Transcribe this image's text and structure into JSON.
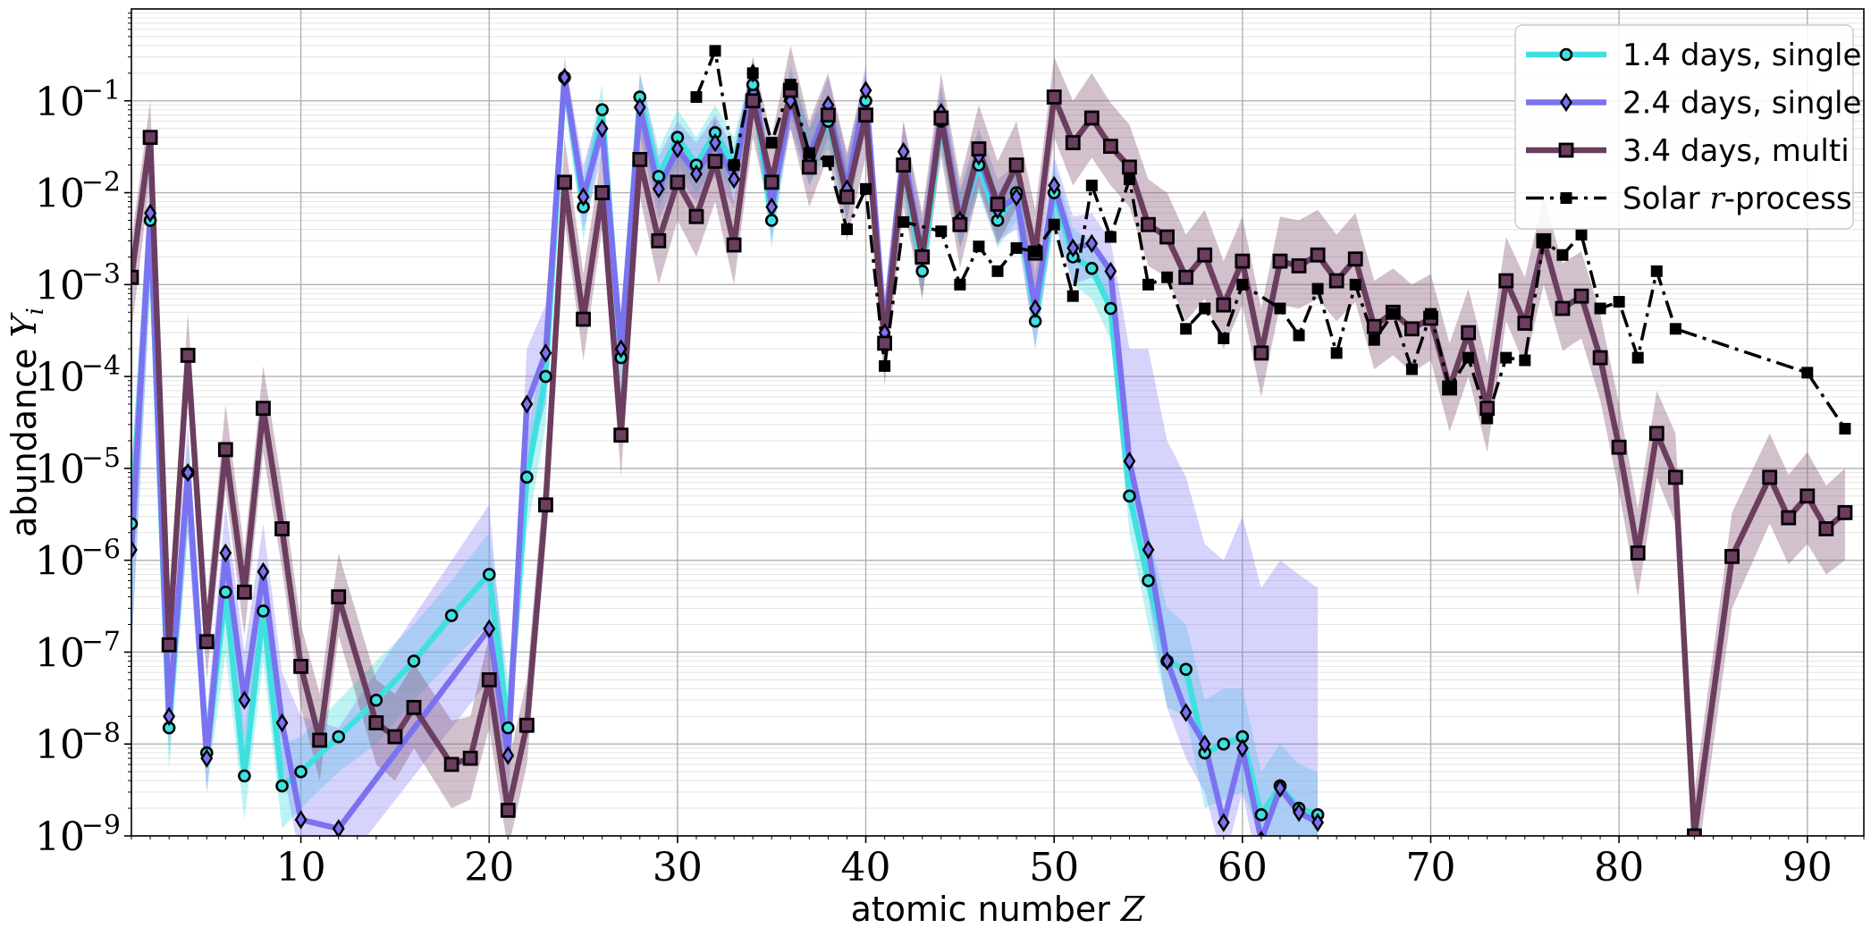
{
  "chart_data": {
    "type": "line",
    "xlabel_text": "atomic number ",
    "xlabel_var": "Z",
    "ylabel_text": "abundance ",
    "ylabel_var": "Y",
    "ylabel_sub": "i",
    "xlim": [
      1,
      93
    ],
    "ylim": [
      1e-09,
      1
    ],
    "yscale": "log",
    "grid": true,
    "legend_position": "top-right",
    "x_ticks": [
      10,
      20,
      30,
      40,
      50,
      60,
      70,
      80,
      90
    ],
    "y_ticks": [
      {
        "base": "10",
        "exp": "−9",
        "value": 1e-09
      },
      {
        "base": "10",
        "exp": "−8",
        "value": 1e-08
      },
      {
        "base": "10",
        "exp": "−7",
        "value": 1e-07
      },
      {
        "base": "10",
        "exp": "−6",
        "value": 1e-06
      },
      {
        "base": "10",
        "exp": "−5",
        "value": 1e-05
      },
      {
        "base": "10",
        "exp": "−4",
        "value": 0.0001
      },
      {
        "base": "10",
        "exp": "−3",
        "value": 0.001
      },
      {
        "base": "10",
        "exp": "−2",
        "value": 0.01
      },
      {
        "base": "10",
        "exp": "−1",
        "value": 0.1
      }
    ],
    "series": [
      {
        "name": "1.4 days, single",
        "color": "#40e0e0",
        "band_color": "#40e0e0",
        "marker": "circle",
        "line_style": "solid",
        "x": [
          1,
          2,
          3,
          4,
          5,
          6,
          7,
          8,
          9,
          10,
          12,
          14,
          16,
          18,
          20,
          21,
          22,
          23,
          24,
          25,
          26,
          27,
          28,
          29,
          30,
          31,
          32,
          33,
          34,
          35,
          36,
          37,
          38,
          39,
          40,
          41,
          42,
          43,
          44,
          45,
          46,
          47,
          48,
          49,
          50,
          51,
          52,
          53,
          54,
          55,
          56,
          57,
          58,
          59,
          60,
          61,
          62,
          63,
          64
        ],
        "y": [
          2.5e-06,
          0.005,
          1.5e-08,
          9e-06,
          8e-09,
          4.5e-07,
          4.5e-09,
          2.8e-07,
          3.5e-09,
          5e-09,
          1.2e-08,
          3e-08,
          8e-08,
          2.5e-07,
          7e-07,
          1.5e-08,
          8e-06,
          0.0001,
          0.18,
          0.007,
          0.08,
          0.00016,
          0.11,
          0.015,
          0.04,
          0.02,
          0.045,
          0.02,
          0.15,
          0.005,
          0.13,
          0.025,
          0.06,
          0.01,
          0.1,
          0.00025,
          0.02,
          0.0014,
          0.06,
          0.005,
          0.02,
          0.005,
          0.01,
          0.0004,
          0.01,
          0.002,
          0.0015,
          0.00055,
          5e-06,
          6e-07,
          8e-08,
          6.5e-08,
          8e-09,
          1e-08,
          1.2e-08,
          1.7e-09,
          3.5e-09,
          2e-09,
          1.7e-09
        ],
        "band_lower": [
          1e-07,
          0.001,
          5e-09,
          2e-06,
          3e-09,
          1e-07,
          1.5e-09,
          8e-08,
          1.2e-09,
          2e-09,
          5e-09,
          1e-08,
          3e-08,
          8e-08,
          2e-07,
          6e-09,
          2e-06,
          3e-05,
          0.1,
          0.003,
          0.04,
          6e-05,
          0.05,
          0.007,
          0.02,
          0.01,
          0.02,
          0.01,
          0.08,
          0.0025,
          0.07,
          0.012,
          0.03,
          0.005,
          0.05,
          0.00012,
          0.01,
          0.0007,
          0.03,
          0.0025,
          0.01,
          0.0025,
          0.005,
          0.0002,
          0.005,
          0.001,
          0.0007,
          0.00025,
          2e-06,
          2e-07,
          2.5e-08,
          2e-08,
          2e-09,
          2.5e-09,
          3e-09,
          1e-09,
          1e-09,
          1e-09,
          1e-09
        ],
        "band_upper": [
          1e-05,
          0.01,
          5e-08,
          2e-05,
          2e-08,
          1.5e-06,
          1.5e-08,
          8e-07,
          1e-08,
          1.2e-08,
          3e-08,
          8e-08,
          2e-07,
          6e-07,
          2e-06,
          5e-08,
          2e-05,
          0.0003,
          0.25,
          0.015,
          0.15,
          0.0004,
          0.2,
          0.03,
          0.08,
          0.04,
          0.09,
          0.04,
          0.25,
          0.01,
          0.25,
          0.05,
          0.12,
          0.02,
          0.2,
          0.0005,
          0.04,
          0.003,
          0.12,
          0.01,
          0.04,
          0.01,
          0.02,
          0.0008,
          0.02,
          0.004,
          0.003,
          0.0012,
          1.5e-05,
          2e-06,
          3e-07,
          2e-07,
          3e-08,
          4e-08,
          4e-08,
          5e-09,
          1e-08,
          6e-09,
          5e-09
        ]
      },
      {
        "name": "2.4 days, single",
        "color": "#7b72f0",
        "band_color": "#8a80f5",
        "marker": "diamond",
        "line_style": "solid",
        "x": [
          1,
          2,
          3,
          4,
          5,
          6,
          7,
          8,
          9,
          10,
          12,
          20,
          21,
          22,
          23,
          24,
          25,
          26,
          27,
          28,
          29,
          30,
          31,
          32,
          33,
          34,
          35,
          36,
          37,
          38,
          39,
          40,
          41,
          42,
          43,
          44,
          45,
          46,
          47,
          48,
          49,
          50,
          51,
          52,
          53,
          54,
          55,
          56,
          57,
          58,
          59,
          60,
          61,
          62,
          63,
          64
        ],
        "y": [
          1.3e-06,
          0.006,
          2e-08,
          9e-06,
          7e-09,
          1.2e-06,
          3e-08,
          7.5e-07,
          1.7e-08,
          1.5e-09,
          1.2e-09,
          1.8e-07,
          7.5e-09,
          5e-05,
          0.00018,
          0.18,
          0.009,
          0.05,
          0.0002,
          0.085,
          0.011,
          0.03,
          0.016,
          0.035,
          0.014,
          0.2,
          0.007,
          0.1,
          0.025,
          0.09,
          0.011,
          0.13,
          0.0003,
          0.028,
          0.002,
          0.075,
          0.005,
          0.025,
          0.0065,
          0.009,
          0.00055,
          0.012,
          0.0025,
          0.0028,
          0.0014,
          1.2e-05,
          1.3e-06,
          8e-08,
          2.2e-08,
          1e-08,
          1.4e-09,
          9e-09,
          9e-10,
          3.3e-09,
          1.8e-09,
          1.4e-09
        ],
        "band_lower": [
          1e-07,
          0.001,
          8e-09,
          2e-06,
          3e-09,
          3e-07,
          1e-08,
          2e-07,
          6e-09,
          5e-10,
          4e-10,
          5e-08,
          2e-09,
          1e-05,
          5e-05,
          0.1,
          0.004,
          0.025,
          8e-05,
          0.04,
          0.005,
          0.015,
          0.008,
          0.015,
          0.007,
          0.1,
          0.003,
          0.05,
          0.012,
          0.04,
          0.005,
          0.06,
          0.00012,
          0.012,
          0.0008,
          0.035,
          0.0025,
          0.012,
          0.003,
          0.004,
          0.0002,
          0.005,
          0.001,
          0.0012,
          0.0006,
          4e-06,
          4e-07,
          2.5e-08,
          7e-09,
          3e-09,
          5e-10,
          3e-09,
          3e-10,
          1e-09,
          6e-10,
          5e-10
        ],
        "band_upper": [
          1e-05,
          0.02,
          6e-08,
          3e-05,
          2e-08,
          4e-06,
          1e-07,
          2.5e-06,
          6e-08,
          2e-08,
          1.5e-08,
          4e-06,
          2.5e-08,
          0.0002,
          0.0006,
          0.3,
          0.02,
          0.1,
          0.0005,
          0.2,
          0.025,
          0.06,
          0.035,
          0.07,
          0.03,
          0.3,
          0.015,
          0.2,
          0.05,
          0.18,
          0.025,
          0.25,
          0.0007,
          0.06,
          0.005,
          0.15,
          0.011,
          0.05,
          0.014,
          0.02,
          0.0013,
          0.025,
          0.0055,
          0.006,
          0.003,
          0.0002,
          0.0002,
          2e-05,
          8e-06,
          1.5e-06,
          1e-06,
          3e-06,
          5e-07,
          1e-06,
          7e-07,
          5e-07
        ]
      },
      {
        "name": "3.4 days, multi",
        "color": "#6b3d5f",
        "band_color": "#8a5a78",
        "marker": "square",
        "line_style": "solid",
        "x": [
          1,
          2,
          3,
          4,
          5,
          6,
          7,
          8,
          9,
          10,
          11,
          12,
          14,
          15,
          16,
          18,
          19,
          20,
          21,
          22,
          23,
          24,
          25,
          26,
          27,
          28,
          29,
          30,
          31,
          32,
          33,
          34,
          35,
          36,
          37,
          38,
          39,
          40,
          41,
          42,
          43,
          44,
          45,
          46,
          47,
          48,
          49,
          50,
          51,
          52,
          53,
          54,
          55,
          56,
          57,
          58,
          59,
          60,
          61,
          62,
          63,
          64,
          65,
          66,
          67,
          68,
          69,
          70,
          71,
          72,
          73,
          74,
          75,
          76,
          77,
          78,
          79,
          80,
          81,
          82,
          83,
          84,
          86,
          88,
          89,
          90,
          91,
          92
        ],
        "y": [
          0.0012,
          0.04,
          1.2e-07,
          0.00017,
          1.3e-07,
          1.6e-05,
          4.5e-07,
          4.5e-05,
          2.2e-06,
          7e-08,
          1.1e-08,
          4e-07,
          1.7e-08,
          1.2e-08,
          2.5e-08,
          6e-09,
          7e-09,
          5e-08,
          1.9e-09,
          1.6e-08,
          4e-06,
          0.013,
          0.00042,
          0.01,
          2.3e-05,
          0.023,
          0.003,
          0.013,
          0.0055,
          0.022,
          0.0027,
          0.1,
          0.013,
          0.13,
          0.019,
          0.07,
          0.009,
          0.07,
          0.00023,
          0.02,
          0.002,
          0.065,
          0.0045,
          0.03,
          0.0075,
          0.02,
          0.0022,
          0.11,
          0.035,
          0.065,
          0.032,
          0.019,
          0.0045,
          0.0033,
          0.0012,
          0.0021,
          0.0006,
          0.0018,
          0.00018,
          0.0018,
          0.0016,
          0.0021,
          0.0011,
          0.0019,
          0.00035,
          0.0005,
          0.00033,
          0.00043,
          7.5e-05,
          0.0003,
          4.5e-05,
          0.0011,
          0.00038,
          0.003,
          0.00055,
          0.00075,
          0.00016,
          1.7e-05,
          1.2e-06,
          2.4e-05,
          8e-06,
          1e-09,
          1.1e-06,
          8e-06,
          2.9e-06,
          5e-06,
          2.2e-06,
          3.3e-06
        ],
        "band_lower": [
          0.0003,
          0.015,
          5e-08,
          6e-05,
          5e-08,
          6e-06,
          1.5e-07,
          1.5e-05,
          8e-07,
          2.5e-08,
          4e-09,
          1.5e-07,
          6e-09,
          4e-09,
          9e-09,
          2e-09,
          2.5e-09,
          1.5e-08,
          7e-10,
          6e-09,
          1.5e-06,
          0.005,
          0.00015,
          0.004,
          8e-06,
          0.009,
          0.001,
          0.005,
          0.002,
          0.008,
          0.001,
          0.04,
          0.005,
          0.05,
          0.007,
          0.025,
          0.003,
          0.025,
          8e-05,
          0.007,
          0.0007,
          0.025,
          0.0015,
          0.011,
          0.0027,
          0.007,
          0.0008,
          0.04,
          0.012,
          0.024,
          0.012,
          0.007,
          0.0016,
          0.0012,
          0.0004,
          0.0007,
          0.0002,
          0.0006,
          6e-05,
          0.0006,
          0.00055,
          0.0007,
          0.0004,
          0.00065,
          0.00012,
          0.00017,
          0.00011,
          0.00015,
          2.5e-05,
          0.0001,
          1.5e-05,
          0.0004,
          0.00013,
          0.001,
          0.00019,
          0.00026,
          5.5e-05,
          5.5e-06,
          4e-07,
          8e-06,
          2.5e-06,
          3e-10,
          3e-07,
          2.5e-06,
          9e-07,
          1.5e-06,
          7e-07,
          1e-06
        ],
        "band_upper": [
          0.003,
          0.1,
          3.5e-07,
          0.0005,
          3.5e-07,
          5e-05,
          1.3e-06,
          0.00013,
          6.5e-06,
          2e-07,
          3.5e-08,
          1.2e-06,
          5e-08,
          3.5e-08,
          7.5e-08,
          1.8e-08,
          2e-08,
          1.5e-07,
          6e-09,
          5e-08,
          1.2e-05,
          0.04,
          0.0013,
          0.03,
          7e-05,
          0.07,
          0.009,
          0.04,
          0.017,
          0.065,
          0.008,
          0.3,
          0.04,
          0.4,
          0.06,
          0.2,
          0.027,
          0.2,
          0.0007,
          0.06,
          0.006,
          0.2,
          0.014,
          0.09,
          0.022,
          0.06,
          0.0065,
          0.3,
          0.1,
          0.2,
          0.095,
          0.055,
          0.014,
          0.01,
          0.0035,
          0.0065,
          0.0018,
          0.0055,
          0.00055,
          0.0055,
          0.005,
          0.0065,
          0.0035,
          0.006,
          0.0011,
          0.0015,
          0.001,
          0.0013,
          0.00023,
          0.0009,
          0.00014,
          0.0033,
          0.0012,
          0.009,
          0.0017,
          0.0023,
          0.00048,
          5e-05,
          3.6e-06,
          7e-05,
          2.4e-05,
          3e-09,
          3.3e-06,
          2.4e-05,
          8.5e-06,
          1.5e-05,
          6.5e-06,
          1e-05
        ]
      },
      {
        "name": "Solar r-process",
        "legend_text": "Solar ",
        "legend_math": "r",
        "legend_suffix": "-process",
        "color": "#000000",
        "marker": "square-filled",
        "line_style": "dashdot",
        "x": [
          31,
          32,
          33,
          34,
          35,
          36,
          37,
          38,
          39,
          40,
          41,
          42,
          44,
          45,
          46,
          47,
          48,
          49,
          50,
          51,
          52,
          53,
          54,
          55,
          56,
          57,
          58,
          59,
          60,
          62,
          63,
          64,
          65,
          66,
          67,
          68,
          69,
          70,
          71,
          72,
          73,
          74,
          75,
          76,
          77,
          78,
          79,
          80,
          81,
          82,
          83,
          90,
          92
        ],
        "y": [
          0.11,
          0.35,
          0.02,
          0.2,
          0.035,
          0.15,
          0.027,
          0.022,
          0.004,
          0.011,
          0.00013,
          0.0048,
          0.0038,
          0.001,
          0.0026,
          0.0014,
          0.0025,
          0.0023,
          0.0045,
          0.00075,
          0.012,
          0.0033,
          0.014,
          0.001,
          0.0012,
          0.00033,
          0.00055,
          0.00026,
          0.001,
          0.00055,
          0.00028,
          0.0009,
          0.00018,
          0.001,
          0.00025,
          0.00048,
          0.00012,
          0.00048,
          7.5e-05,
          0.00016,
          3.5e-05,
          0.00016,
          0.00015,
          0.003,
          0.0021,
          0.0035,
          0.00055,
          0.00065,
          0.00016,
          0.0014,
          0.00033,
          0.00011,
          2.7e-05
        ]
      }
    ]
  }
}
